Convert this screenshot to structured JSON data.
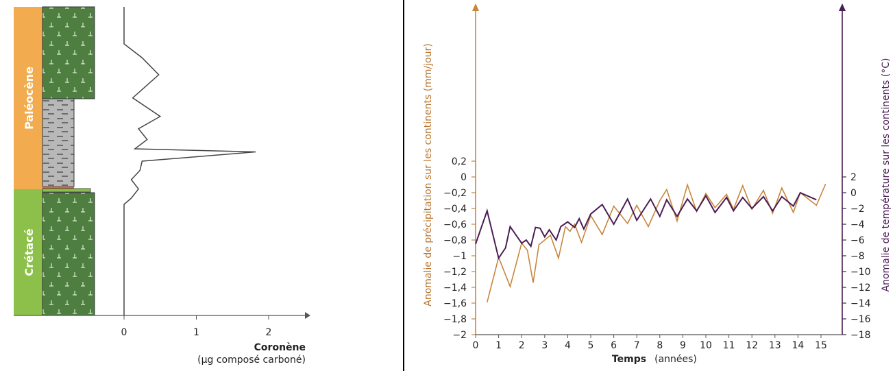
{
  "chart_data": [
    {
      "type": "stratigraphic-log",
      "eras": [
        {
          "name": "Paléocène",
          "color": "#f2ac4f"
        },
        {
          "name": "Crétacé",
          "color": "#8cc04a"
        }
      ],
      "xlabel": "Coronène",
      "xunit": "(µg composé carboné)",
      "xticks": [
        "0",
        "1",
        "2"
      ],
      "xlim": [
        0,
        2.5
      ],
      "coronene_profile": [
        {
          "x": 0,
          "y": 0.0
        },
        {
          "x": 0,
          "y": 0.12
        },
        {
          "x": 0.25,
          "y": 0.165
        },
        {
          "x": 0.48,
          "y": 0.22
        },
        {
          "x": 0.12,
          "y": 0.295
        },
        {
          "x": 0.5,
          "y": 0.355
        },
        {
          "x": 0.2,
          "y": 0.395
        },
        {
          "x": 0.32,
          "y": 0.43
        },
        {
          "x": 0.15,
          "y": 0.46
        },
        {
          "x": 1.82,
          "y": 0.47
        },
        {
          "x": 0.25,
          "y": 0.5
        },
        {
          "x": 0.22,
          "y": 0.53
        },
        {
          "x": 0.1,
          "y": 0.56
        },
        {
          "x": 0.2,
          "y": 0.59
        },
        {
          "x": 0.1,
          "y": 0.62
        },
        {
          "x": 0,
          "y": 0.64
        },
        {
          "x": 0,
          "y": 1.0
        }
      ],
      "colors": {
        "rock_green": "#4e7f40",
        "rock_grey": "#b5b5b5",
        "ash": "#8cc04a",
        "clay": "#c8694d"
      }
    },
    {
      "type": "line",
      "xlabel": "Temps",
      "xunit": "(années)",
      "ylabel_left": "Anomalie de précipitation sur les continents (mm/jour)",
      "ylabel_right": "Anomalie de température sur les continents (°C)",
      "xticks": [
        "0",
        "1",
        "2",
        "3",
        "4",
        "5",
        "6",
        "7",
        "8",
        "9",
        "10",
        "11",
        "12",
        "13",
        "14",
        "15"
      ],
      "yticks_left": [
        "0,2",
        "0",
        "−0,2",
        "−0,4",
        "−0,6",
        "−0,8",
        "−1",
        "−1,2",
        "−1,4",
        "−1,6",
        "−1,8",
        "−2"
      ],
      "yticks_right": [
        "2",
        "0",
        "−2",
        "−4",
        "−6",
        "−8",
        "−10",
        "−12",
        "−14",
        "−16",
        "−18"
      ],
      "xlim": [
        0,
        15.4
      ],
      "ylim_left": [
        -2,
        0.25
      ],
      "ylim_right": [
        -18,
        2.5
      ],
      "series": [
        {
          "axis": "left",
          "color": "#c8853c",
          "x": [
            0.5,
            1,
            1.5,
            2,
            2.25,
            2.5,
            2.75,
            3.25,
            3.6,
            3.9,
            4.1,
            4.3,
            4.6,
            5,
            5.5,
            6,
            6.6,
            7,
            7.5,
            8,
            8.3,
            8.75,
            9.2,
            9.6,
            10,
            10.4,
            10.9,
            11.2,
            11.6,
            12,
            12.5,
            12.9,
            13.3,
            13.8,
            14.1,
            14.8,
            15.2
          ],
          "y": [
            -1.59,
            -1.02,
            -1.39,
            -0.84,
            -0.93,
            -1.34,
            -0.86,
            -0.74,
            -1.03,
            -0.63,
            -0.69,
            -0.6,
            -0.83,
            -0.49,
            -0.73,
            -0.37,
            -0.59,
            -0.36,
            -0.63,
            -0.3,
            -0.16,
            -0.56,
            -0.1,
            -0.44,
            -0.21,
            -0.39,
            -0.22,
            -0.41,
            -0.11,
            -0.41,
            -0.17,
            -0.46,
            -0.14,
            -0.45,
            -0.2,
            -0.36,
            -0.09
          ]
        },
        {
          "axis": "right",
          "color": "#4b1d55",
          "x": [
            0,
            0.5,
            1,
            1.3,
            1.5,
            2,
            2.2,
            2.4,
            2.6,
            2.8,
            3,
            3.2,
            3.5,
            3.7,
            4,
            4.3,
            4.5,
            4.7,
            5,
            5.5,
            6,
            6.6,
            7,
            7.6,
            8,
            8.3,
            8.75,
            9.2,
            9.6,
            10,
            10.4,
            10.9,
            11.2,
            11.6,
            12,
            12.5,
            12.9,
            13.3,
            13.8,
            14.1,
            14.8
          ],
          "y": [
            -6.5,
            -2.3,
            -8.3,
            -7,
            -4.3,
            -6.4,
            -6,
            -6.8,
            -4.4,
            -4.5,
            -5.6,
            -4.7,
            -6,
            -4.3,
            -3.7,
            -4.4,
            -3.3,
            -4.6,
            -2.7,
            -1.5,
            -4.0,
            -0.8,
            -3.5,
            -0.8,
            -3.0,
            -0.9,
            -3.0,
            -0.8,
            -2.3,
            -0.4,
            -2.5,
            -0.6,
            -2.3,
            -0.6,
            -2.0,
            -0.5,
            -2.3,
            -0.5,
            -1.7,
            0.0,
            -0.9
          ]
        }
      ]
    }
  ]
}
